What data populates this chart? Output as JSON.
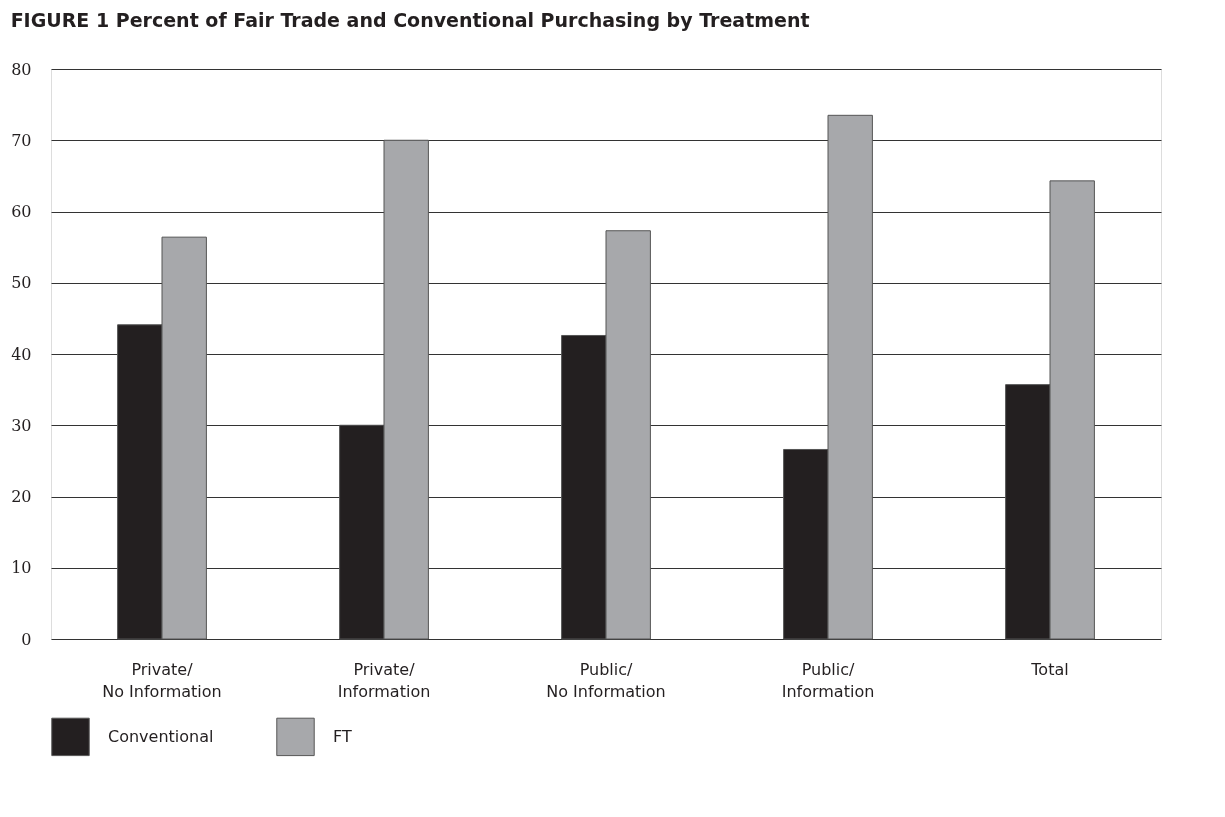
{
  "chart_data": {
    "type": "bar",
    "title": "FIGURE 1  Percent of Fair Trade and Conventional Purchasing by Treatment",
    "categories": [
      "Private/\nNo Information",
      "Private/\nInformation",
      "Public/\nNo Information",
      "Public/\nInformation",
      "Total"
    ],
    "series": [
      {
        "name": "Conventional",
        "color": "#231f20",
        "values": [
          44.1,
          30.0,
          42.6,
          26.6,
          35.7
        ]
      },
      {
        "name": "FT",
        "color": "#a7a8ab",
        "values": [
          56.4,
          70.0,
          57.3,
          73.5,
          64.3
        ]
      }
    ],
    "ylim": [
      0,
      80
    ],
    "yticks": [
      0,
      10,
      20,
      30,
      40,
      50,
      60,
      70,
      80
    ],
    "grid": "y",
    "legend": "bottom left"
  }
}
